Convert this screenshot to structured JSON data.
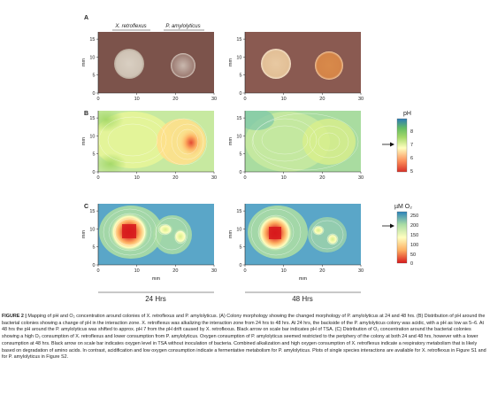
{
  "panels": {
    "A": {
      "label": "A",
      "species": [
        "X. retroflexus",
        "P. amylolyticus"
      ],
      "ylabel": "mm",
      "x_ticks": [
        "0",
        "10",
        "20",
        "30"
      ],
      "y_ticks": [
        "0",
        "5",
        "10",
        "15"
      ]
    },
    "B": {
      "label": "B",
      "ylabel": "mm",
      "x_ticks": [
        "0",
        "10",
        "20",
        "30"
      ],
      "y_ticks": [
        "0",
        "5",
        "10",
        "15"
      ],
      "colorbar": {
        "title": "pH",
        "ticks": [
          "8",
          "7",
          "6",
          "5"
        ],
        "arrow_at": "7"
      }
    },
    "C": {
      "label": "C",
      "ylabel": "mm",
      "xlabel": "mm",
      "x_ticks": [
        "0",
        "10",
        "20",
        "30"
      ],
      "y_ticks": [
        "0",
        "5",
        "10",
        "15"
      ],
      "colorbar": {
        "title": "µM O₂",
        "ticks": [
          "250",
          "200",
          "150",
          "100",
          "50",
          "0"
        ],
        "arrow_at": "210"
      }
    }
  },
  "timepoints": [
    "24 Hrs",
    "48 Hrs"
  ],
  "colors": {
    "plate_bg": "#7a4f48",
    "ph_scale": [
      "#d73027",
      "#fdae61",
      "#ffffbf",
      "#a6d96a",
      "#1a9850",
      "#2c7bb6"
    ],
    "o2_scale": [
      "#d7191c",
      "#fdae61",
      "#ffffbf",
      "#abdda4",
      "#2b83ba"
    ]
  },
  "caption": {
    "label": "FIGURE 2 |",
    "title": "Mapping of pH and O₂ concentration around colonies of X. retroflexus and P. amylolyticus.",
    "body": "(A) Colony morphology showing the changed morphology of P. amylolyticus at 24 and 48 hrs. (B) Distribution of pH around the bacterial colonies showing a change of pH in the interaction zone. X. retroflexus was alkalizing the interaction zone from 24 hrs to 48 hrs. At 24 hrs, the backside of the P. amylolyticus colony was acidic, with a pH as low as 5–6. At 48 hrs the pH around the P. amylolyticus was shifted to approx. pH 7 from the pH drift caused by X. retroflexus. Black arrow on scale bar indicates pH of TSA. (C) Distribution of O₂ concentration around the bacterial colonies showing a high O₂ consumption of X. retroflexus and lower consumption from P. amylolyticus. Oxygen consumption of P. amylolyticus seemed restricted to the periphery of the colony at both 24 and 48 hrs, however with a lower consumption at 48 hrs. Black arrow on scale bar indicates oxygen level in TSA without inoculation of bacteria. Combined alkalization and high oxygen consumption of X. retroflexus indicate a respiratory metabolism that is likely based on degradation of amino acids. In contrast, acidification and low oxygen consumption indicate a fermentative metabolism for P. amylolyticus. Plots of single species interactions are available for X. retroflexus in Figure S1 and for P. amylolyticus in Figure S2."
  }
}
